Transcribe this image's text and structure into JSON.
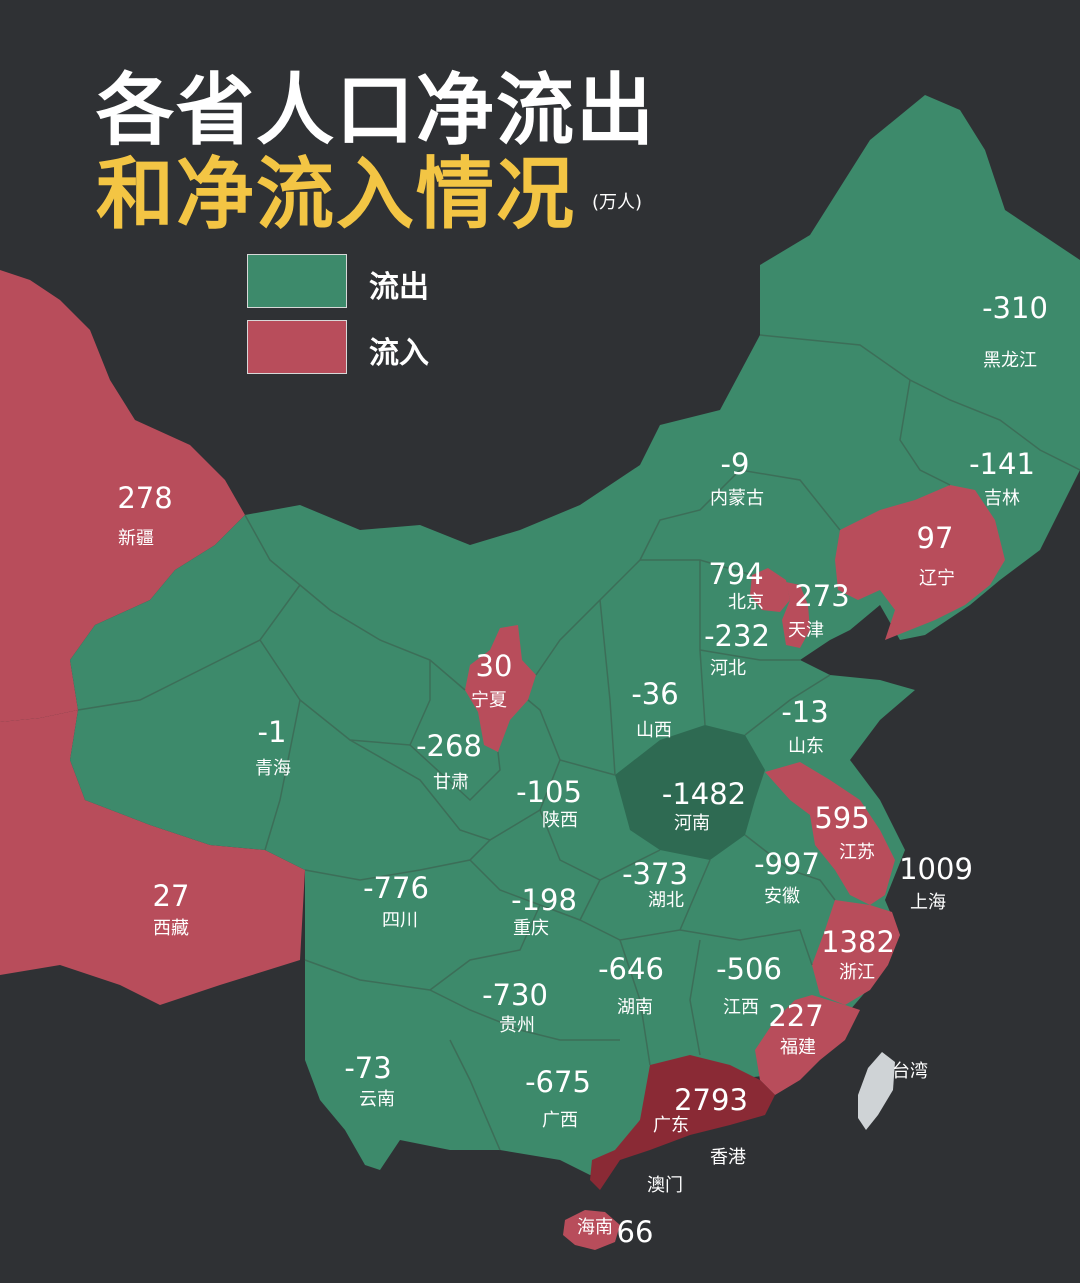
{
  "title_line1": "各省人口净流出",
  "title_line2": "和净流入情况",
  "unit": "(万人)",
  "legend": [
    {
      "label": "流出",
      "color": "#3d8a6b"
    },
    {
      "label": "流入",
      "color": "#b84d5b"
    }
  ],
  "colors": {
    "background": "#2f3134",
    "outflow": "#3d8a6b",
    "inflow": "#b84d5b",
    "strong_outflow": "#2e6a52",
    "strong_inflow": "#8a2a35",
    "taiwan": "#cfd3d6"
  },
  "provinces": [
    {
      "name": "黑龙江",
      "value": "-310"
    },
    {
      "name": "吉林",
      "value": "-141"
    },
    {
      "name": "辽宁",
      "value": "97"
    },
    {
      "name": "内蒙古",
      "value": "-9"
    },
    {
      "name": "新疆",
      "value": "278"
    },
    {
      "name": "北京",
      "value": "794"
    },
    {
      "name": "天津",
      "value": "273"
    },
    {
      "name": "河北",
      "value": "-232"
    },
    {
      "name": "宁夏",
      "value": "30"
    },
    {
      "name": "山西",
      "value": "-36"
    },
    {
      "name": "山东",
      "value": "-13"
    },
    {
      "name": "青海",
      "value": "-1"
    },
    {
      "name": "甘肃",
      "value": "-268"
    },
    {
      "name": "陕西",
      "value": "-105"
    },
    {
      "name": "河南",
      "value": "-1482"
    },
    {
      "name": "江苏",
      "value": "595"
    },
    {
      "name": "西藏",
      "value": "27"
    },
    {
      "name": "四川",
      "value": "-776"
    },
    {
      "name": "重庆",
      "value": "-198"
    },
    {
      "name": "湖北",
      "value": "-373"
    },
    {
      "name": "安徽",
      "value": "-997"
    },
    {
      "name": "上海",
      "value": "1009"
    },
    {
      "name": "浙江",
      "value": "1382"
    },
    {
      "name": "湖南",
      "value": "-646"
    },
    {
      "name": "江西",
      "value": "-506"
    },
    {
      "name": "贵州",
      "value": "-730"
    },
    {
      "name": "福建",
      "value": "227"
    },
    {
      "name": "云南",
      "value": "-73"
    },
    {
      "name": "广西",
      "value": "-675"
    },
    {
      "name": "广东",
      "value": "2793"
    },
    {
      "name": "海南",
      "value": "66"
    }
  ],
  "places": [
    "台湾",
    "香港",
    "澳门"
  ]
}
